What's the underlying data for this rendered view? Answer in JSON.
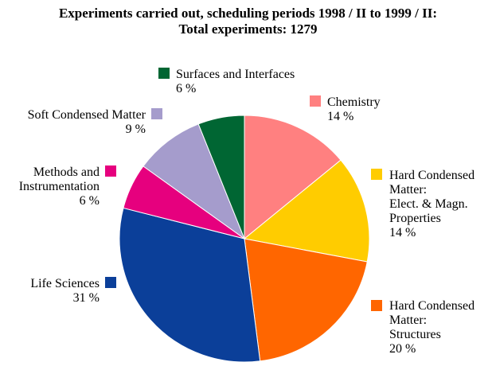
{
  "chart_data": {
    "type": "pie",
    "title": "Experiments carried out, scheduling periods 1998 / II to 1999 / II:",
    "subtitle": "Total experiments: 1279",
    "slices": [
      {
        "label": [
          "Chemistry"
        ],
        "value_label": "14 %",
        "value": 14,
        "color": "#ff8080"
      },
      {
        "label": [
          "Hard Condensed",
          "Matter:",
          "Elect. & Magn.",
          "Properties"
        ],
        "value_label": "14 %",
        "value": 14,
        "color": "#ffcc00"
      },
      {
        "label": [
          "Hard Condensed",
          "Matter:",
          "Structures"
        ],
        "value_label": "20 %",
        "value": 20,
        "color": "#ff6600"
      },
      {
        "label": [
          "Life Sciences"
        ],
        "value_label": "31 %",
        "value": 31,
        "color": "#0b3f99"
      },
      {
        "label": [
          "Methods and",
          "Instrumentation"
        ],
        "value_label": "6 %",
        "value": 6,
        "color": "#e6007e"
      },
      {
        "label": [
          "Soft Condensed Matter"
        ],
        "value_label": "9 %",
        "value": 9,
        "color": "#a59ccc"
      },
      {
        "label": [
          "Surfaces and Interfaces"
        ],
        "value_label": "6 %",
        "value": 6,
        "color": "#006633"
      }
    ]
  }
}
